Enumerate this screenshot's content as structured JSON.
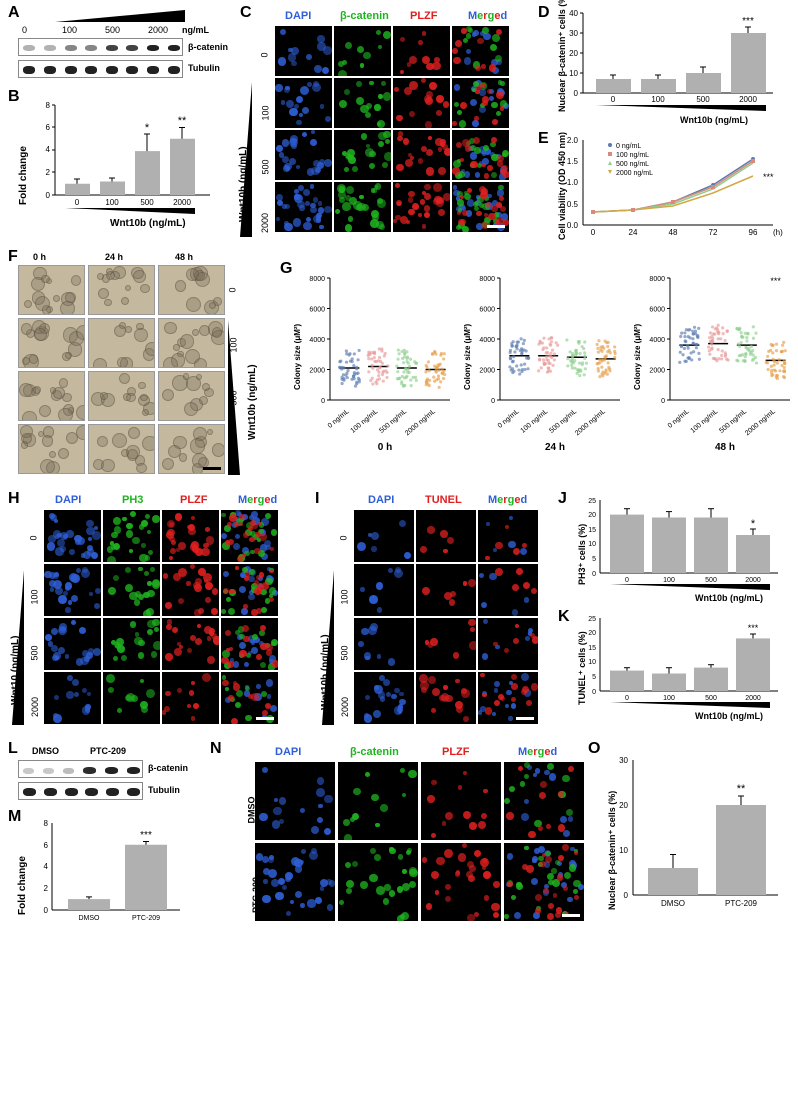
{
  "panelA": {
    "label": "A",
    "doses": [
      "0",
      "100",
      "500",
      "2000"
    ],
    "dose_unit": "ng/mL",
    "target1": "β-catenin",
    "target2": "Tubulin",
    "band_intensities_beta": [
      0.3,
      0.3,
      0.5,
      0.5,
      0.8,
      0.8,
      1.0,
      1.0
    ],
    "band_intensities_tub": [
      0.9,
      0.9,
      0.9,
      0.9,
      0.9,
      0.9,
      0.9,
      0.9
    ]
  },
  "panelB": {
    "label": "B",
    "ylabel": "Fold change",
    "xlabel": "Wnt10b (ng/mL)",
    "categories": [
      "0",
      "100",
      "500",
      "2000"
    ],
    "values": [
      1.0,
      1.2,
      3.9,
      5.0
    ],
    "errors": [
      0.4,
      0.3,
      1.5,
      1.0
    ],
    "significance": [
      "",
      "",
      "*",
      "**"
    ],
    "ylim": [
      0,
      8
    ],
    "ytick_step": 2,
    "bar_color": "#b0b0b0",
    "error_color": "#000000"
  },
  "panelC": {
    "label": "C",
    "channels": [
      "DAPI",
      "β-catenin",
      "PLZF",
      "Merged"
    ],
    "channel_colors": [
      "#2e5fd6",
      "#1fb51f",
      "#e02020",
      "#ffffff"
    ],
    "merged_letters_colors": [
      "#2e5fd6",
      "#1fb51f",
      "#e02020",
      "#1fb51f",
      "#e02020",
      "#2e5fd6"
    ],
    "row_labels": [
      "0",
      "100",
      "500",
      "2000"
    ],
    "side_label": "Wnt10b (ng/mL)",
    "scale_bar_color": "#ffffff"
  },
  "panelD": {
    "label": "D",
    "ylabel": "Nuclear β-catenin⁺ cells (%)",
    "xlabel": "Wnt10b (ng/mL)",
    "categories": [
      "0",
      "100",
      "500",
      "2000"
    ],
    "values": [
      7,
      7,
      10,
      30
    ],
    "errors": [
      2,
      2,
      3,
      3
    ],
    "significance": [
      "",
      "",
      "",
      "***"
    ],
    "ylim": [
      0,
      40
    ],
    "ytick_step": 10,
    "bar_color": "#b0b0b0"
  },
  "panelE": {
    "label": "E",
    "ylabel": "Cell viability (OD 450 nm)",
    "xlabel": "(h)",
    "timepoints": [
      0,
      24,
      48,
      72,
      96
    ],
    "series": [
      {
        "name": "0 ng/mL",
        "color": "#5b7bb0",
        "values": [
          0.3,
          0.35,
          0.55,
          0.95,
          1.55
        ]
      },
      {
        "name": "100 ng/mL",
        "color": "#d98a7a",
        "values": [
          0.3,
          0.35,
          0.55,
          0.9,
          1.5
        ]
      },
      {
        "name": "500 ng/mL",
        "color": "#8fcf8f",
        "values": [
          0.3,
          0.35,
          0.5,
          0.85,
          1.45
        ]
      },
      {
        "name": "2000 ng/mL",
        "color": "#d4a84a",
        "values": [
          0.3,
          0.35,
          0.45,
          0.75,
          1.15
        ]
      }
    ],
    "ylim": [
      0.0,
      2.0
    ],
    "ytick_step": 0.5,
    "significance": "***"
  },
  "panelF": {
    "label": "F",
    "col_labels": [
      "0 h",
      "24 h",
      "48 h"
    ],
    "row_labels": [
      "0",
      "100",
      "500",
      "2000"
    ],
    "side_label": "Wnt10b (ng/mL)"
  },
  "panelG": {
    "label": "G",
    "ylabel": "Colony size (μM²)",
    "sub_titles": [
      "0 h",
      "24 h",
      "48 h"
    ],
    "categories": [
      "0 ng/mL",
      "100 ng/mL",
      "500 ng/mL",
      "2000 ng/mL"
    ],
    "colors": [
      "#5b7bb0",
      "#e89a9a",
      "#8fcf8f",
      "#e6a04a"
    ],
    "ylim": [
      0,
      8000
    ],
    "ytick_step": 2000,
    "means": [
      [
        2100,
        2200,
        2100,
        2000
      ],
      [
        2900,
        2900,
        2800,
        2700
      ],
      [
        3600,
        3700,
        3600,
        2600
      ]
    ],
    "significance_48h": [
      "",
      "",
      "",
      "***"
    ]
  },
  "panelH": {
    "label": "H",
    "channels": [
      "DAPI",
      "PH3",
      "PLZF",
      "Merged"
    ],
    "channel_colors": [
      "#2e5fd6",
      "#1fb51f",
      "#e02020",
      "#ffffff"
    ],
    "row_labels": [
      "0",
      "100",
      "500",
      "2000"
    ],
    "side_label": "Wnt10 (ng/mL)"
  },
  "panelI": {
    "label": "I",
    "channels": [
      "DAPI",
      "TUNEL",
      "Merged"
    ],
    "channel_colors": [
      "#2e5fd6",
      "#e02020",
      "#ffffff"
    ],
    "row_labels": [
      "0",
      "100",
      "500",
      "2000"
    ],
    "side_label": "Wnt10b  (ng/mL)"
  },
  "panelJ": {
    "label": "J",
    "ylabel": "PH3⁺ cells (%)",
    "xlabel": "Wnt10b (ng/mL)",
    "categories": [
      "0",
      "100",
      "500",
      "2000"
    ],
    "values": [
      20,
      19,
      19,
      13
    ],
    "errors": [
      2,
      2,
      3,
      2
    ],
    "significance": [
      "",
      "",
      "",
      "*"
    ],
    "ylim": [
      0,
      25
    ],
    "ytick_step": 5,
    "bar_color": "#b0b0b0"
  },
  "panelK": {
    "label": "K",
    "ylabel": "TUNEL⁺ cells (%)",
    "xlabel": "Wnt10b (ng/mL)",
    "categories": [
      "0",
      "100",
      "500",
      "2000"
    ],
    "values": [
      7,
      6,
      8,
      18
    ],
    "errors": [
      1,
      2,
      1,
      1.5
    ],
    "significance": [
      "",
      "",
      "",
      "***"
    ],
    "ylim": [
      0,
      25
    ],
    "ytick_step": 5,
    "bar_color": "#b0b0b0"
  },
  "panelL": {
    "label": "L",
    "conditions": [
      "DMSO",
      "PTC-209"
    ],
    "target1": "β-catenin",
    "target2": "Tubulin",
    "band_intensities_beta": [
      0.2,
      0.2,
      0.25,
      0.9,
      0.95,
      0.95
    ],
    "band_intensities_tub": [
      0.9,
      0.9,
      0.9,
      0.9,
      0.9,
      0.9
    ]
  },
  "panelM": {
    "label": "M",
    "ylabel": "Fold change",
    "categories": [
      "DMSO",
      "PTC-209"
    ],
    "values": [
      1.0,
      6.0
    ],
    "errors": [
      0.2,
      0.3
    ],
    "significance": [
      "",
      "***"
    ],
    "ylim": [
      0,
      8
    ],
    "ytick_step": 2,
    "bar_color": "#b0b0b0"
  },
  "panelN": {
    "label": "N",
    "channels": [
      "DAPI",
      "β-catenin",
      "PLZF",
      "Merged"
    ],
    "channel_colors": [
      "#2e5fd6",
      "#1fb51f",
      "#e02020",
      "#ffffff"
    ],
    "row_labels": [
      "DMSO",
      "PTC-209"
    ]
  },
  "panelO": {
    "label": "O",
    "ylabel": "Nuclear β-catenin⁺ cells (%)",
    "categories": [
      "DMSO",
      "PTC-209"
    ],
    "values": [
      6,
      20
    ],
    "errors": [
      3,
      2
    ],
    "significance": [
      "",
      "**"
    ],
    "ylim": [
      0,
      30
    ],
    "ytick_step": 10,
    "bar_color": "#b0b0b0"
  },
  "style": {
    "panel_label_fontsize": 16,
    "axis_fontsize": 10,
    "tick_fontsize": 8,
    "background": "#ffffff"
  }
}
